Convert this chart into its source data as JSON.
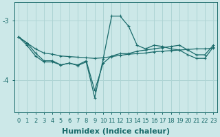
{
  "xlabel": "Humidex (Indice chaleur)",
  "background_color": "#cce8e8",
  "grid_color": "#aed4d4",
  "line_color": "#1a6b6b",
  "x_values": [
    0,
    1,
    2,
    3,
    4,
    5,
    6,
    7,
    8,
    9,
    10,
    11,
    12,
    13,
    14,
    15,
    16,
    17,
    18,
    19,
    20,
    21,
    22,
    23
  ],
  "line1_y": [
    -3.28,
    -3.38,
    -3.48,
    -3.55,
    -3.57,
    -3.6,
    -3.61,
    -3.62,
    -3.63,
    -3.64,
    -3.63,
    -3.61,
    -3.59,
    -3.57,
    -3.56,
    -3.55,
    -3.53,
    -3.52,
    -3.51,
    -3.5,
    -3.49,
    -3.48,
    -3.48,
    -3.47
  ],
  "line2_y": [
    -3.28,
    -3.42,
    -3.6,
    -3.7,
    -3.7,
    -3.75,
    -3.72,
    -3.76,
    -3.7,
    -4.3,
    -3.65,
    -2.93,
    -2.93,
    -3.1,
    -3.42,
    -3.48,
    -3.42,
    -3.44,
    -3.48,
    -3.5,
    -3.58,
    -3.64,
    -3.64,
    -3.45
  ],
  "line3_y": [
    -3.28,
    -3.38,
    -3.55,
    -3.68,
    -3.68,
    -3.75,
    -3.72,
    -3.75,
    -3.68,
    -4.18,
    -3.72,
    -3.6,
    -3.56,
    -3.56,
    -3.52,
    -3.5,
    -3.48,
    -3.46,
    -3.44,
    -3.42,
    -3.5,
    -3.58,
    -3.58,
    -3.42
  ],
  "ylim": [
    -4.55,
    -2.7
  ],
  "yticks": [
    -4.0,
    -3.0
  ],
  "ytick_labels": [
    "-4",
    "-3"
  ],
  "xticks": [
    0,
    1,
    2,
    3,
    4,
    5,
    6,
    7,
    8,
    9,
    10,
    11,
    12,
    13,
    14,
    15,
    16,
    17,
    18,
    19,
    20,
    21,
    22,
    23
  ],
  "fontsize_label": 8,
  "fontsize_tick": 7,
  "linewidth": 0.9,
  "markersize": 3
}
